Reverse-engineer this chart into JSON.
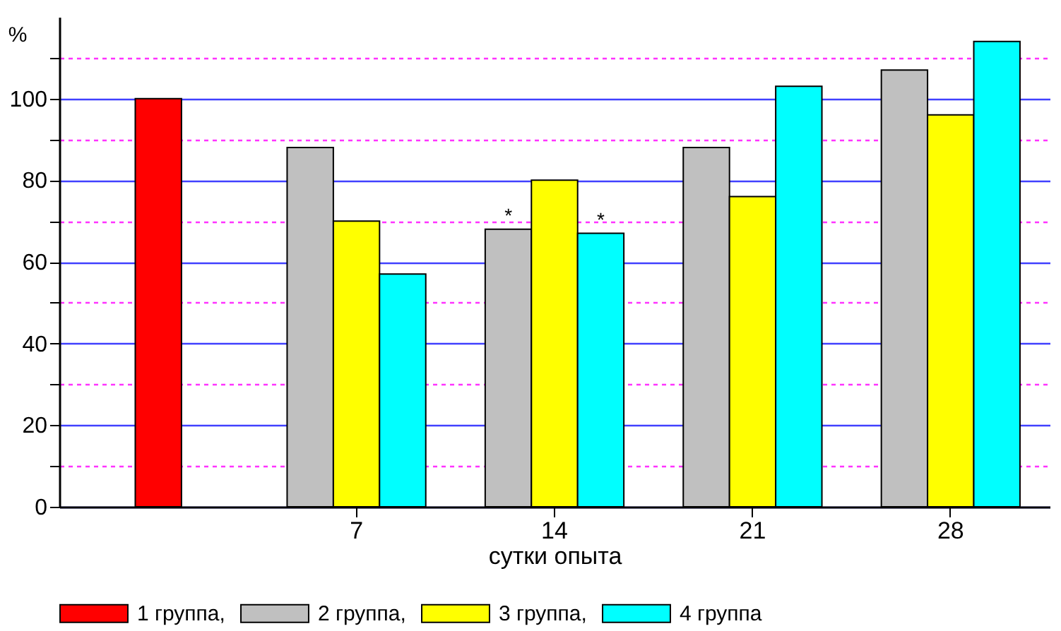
{
  "chart_data": {
    "type": "bar",
    "xlabel": "сутки опыта",
    "ylabel": "%",
    "categories": [
      null,
      "7",
      "14",
      "21",
      "28"
    ],
    "ylim": [
      0,
      120
    ],
    "yticks": [
      0,
      {
        "value": 10,
        "label": null
      },
      20,
      {
        "value": 30,
        "label": null
      },
      40,
      {
        "value": 50,
        "label": null
      },
      60,
      {
        "value": 70,
        "label": null
      },
      80,
      {
        "value": 90,
        "label": null
      },
      100,
      {
        "value": 110,
        "label": null
      }
    ],
    "grid": "y",
    "legend": "bottom",
    "series": [
      {
        "name": "1 группа,",
        "color": "#ff0000",
        "values": [
          100,
          null,
          null,
          null,
          null
        ]
      },
      {
        "name": "2 группа,",
        "color": "#c0c0c0",
        "values": [
          null,
          88,
          68,
          88,
          107
        ],
        "value_labels": [
          null,
          null,
          "*",
          null,
          null
        ]
      },
      {
        "name": "3 группа,",
        "color": "#ffff00",
        "values": [
          null,
          70,
          80,
          76,
          96
        ]
      },
      {
        "name": "4 группа",
        "color": "#00ffff",
        "values": [
          null,
          57,
          67,
          103,
          114
        ],
        "value_labels": [
          null,
          null,
          "*",
          null,
          null
        ]
      }
    ]
  }
}
